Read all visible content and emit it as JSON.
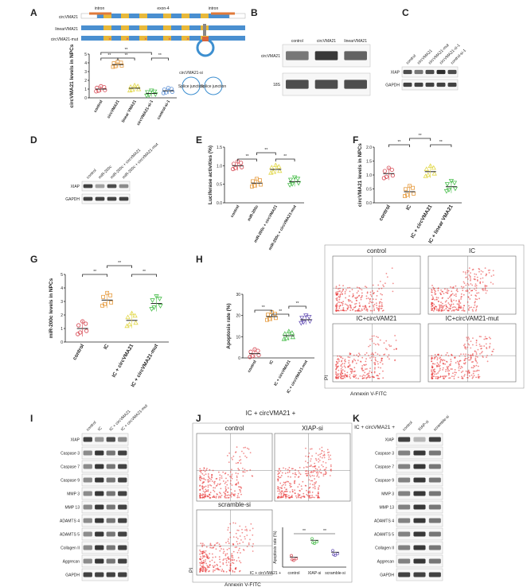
{
  "panels": [
    "A",
    "B",
    "C",
    "D",
    "E",
    "F",
    "G",
    "H",
    "I",
    "J",
    "K"
  ],
  "panelA": {
    "rows": [
      "circVMA21",
      "linearVMA21",
      "circVMA21-mut"
    ],
    "labels": [
      "intron",
      "exon-4",
      "intron"
    ],
    "ylabel": "circVMA21 levels in NPCs",
    "groups": [
      "control",
      "circVMA21",
      "linear VMA21",
      "circVMA21-si-1",
      "control-si-1"
    ],
    "means": [
      1.0,
      3.8,
      1.1,
      0.5,
      0.8
    ],
    "sig": [
      "**",
      "**",
      "**",
      "**"
    ],
    "ticks": [
      "0",
      "1",
      "2",
      "3",
      "4",
      "5"
    ],
    "legend": [
      "circVMA21-si",
      "Splice junction",
      "Splice junction"
    ]
  },
  "panelB": {
    "lanes": [
      "control",
      "circVMA21",
      "linearVMA21"
    ],
    "rows": [
      "circVMA21",
      "18S"
    ]
  },
  "panelC": {
    "lanes": [
      "control",
      "circVMA21",
      "circVMA21-mut",
      "circVMA21-si-1",
      "control-si-1"
    ],
    "rows": [
      "XIAP",
      "GAPDH"
    ]
  },
  "panelD": {
    "lanes": [
      "control",
      "miR-200c",
      "miR-200c + circVMA21",
      "miR-200c + circVMA21-mut"
    ],
    "rows": [
      "XIAP",
      "GAPDH"
    ]
  },
  "panelE": {
    "ylabel": "Luciferase activities (%)",
    "groups": [
      "control",
      "miR-200c",
      "miR-200c + circVMA21",
      "miR-200c + circVMA21-mut"
    ],
    "means": [
      1.0,
      0.53,
      0.9,
      0.57
    ],
    "ticks": [
      "0.0",
      "0.5",
      "1.0",
      "1.5"
    ],
    "sig": [
      "**",
      "**"
    ]
  },
  "panelF": {
    "ylabel": "circVMA21 levels in NPCs",
    "groups": [
      "control",
      "IC",
      "IC + circVMA21",
      "IC + linear VMA21"
    ],
    "means": [
      1.05,
      0.4,
      1.12,
      0.58
    ],
    "ticks": [
      "0.0",
      "0.5",
      "1.0",
      "1.5",
      "2.0"
    ],
    "sig": [
      "**",
      "**",
      "**"
    ]
  },
  "panelG": {
    "ylabel": "miR-200c levels in NPCs",
    "groups": [
      "control",
      "IC",
      "IC + circVMA21",
      "IC + circVMA21-mut"
    ],
    "means": [
      1.0,
      3.1,
      1.6,
      2.85
    ],
    "ticks": [
      "0",
      "1",
      "2",
      "3",
      "4",
      "5"
    ],
    "sig": [
      "**",
      "**",
      "**"
    ]
  },
  "panelH": {
    "ylabel": "Apoptosis rate (%)",
    "groups": [
      "control",
      "IC",
      "IC + circVMA21",
      "IC + circVMA21-mut"
    ],
    "means": [
      2,
      19.5,
      10.5,
      18
    ],
    "ticks": [
      "0",
      "10",
      "20",
      "30"
    ],
    "sig": [
      "**",
      "**",
      "**"
    ],
    "flow_titles": [
      "control",
      "IC",
      "IC+circVAM21",
      "IC+circVAM21-mut"
    ],
    "xaxis": "Annexin V-FITC",
    "yaxis": "PI"
  },
  "panelI": {
    "lanes": [
      "control",
      "IC",
      "IC + circVMA21",
      "IC + circVMA21-mut"
    ],
    "rows": [
      "XIAP",
      "Caspase 3",
      "Caspase 7",
      "Caspase 9",
      "MMP 3",
      "MMP 13",
      "ADAMTS 4",
      "ADAMTS 5",
      "Collagen II",
      "Aggrecan",
      "GAPDH"
    ]
  },
  "panelJ": {
    "header": "IC + circVMA21 +",
    "flow_titles": [
      "control",
      "XIAP-si",
      "scramble-si"
    ],
    "xaxis": "Annexin V-FITC",
    "yaxis": "PI",
    "inset": {
      "ylabel": "Apoptosis rate (%)",
      "groups": [
        "control",
        "XIAP-si",
        "scramble-si"
      ],
      "means": [
        10,
        27,
        15
      ],
      "prefix": "IC + circVMA21 +"
    }
  },
  "panelK": {
    "header": "IC + circVMA21 +",
    "lanes": [
      "control",
      "XIAP-si",
      "scramble-si"
    ],
    "rows": [
      "XIAP",
      "Caspase 3",
      "Caspase 7",
      "Caspase 9",
      "MMP 3",
      "MMP 13",
      "ADAMTS 4",
      "ADAMTS 5",
      "Collagen II",
      "Aggrecan",
      "GAPDH"
    ]
  },
  "colors": {
    "red": "#d64550",
    "orange": "#e69a3c",
    "yellow": "#e2d84a",
    "green": "#4cbf4f",
    "blue": "#5a8fd6",
    "purple": "#6b56b8"
  }
}
